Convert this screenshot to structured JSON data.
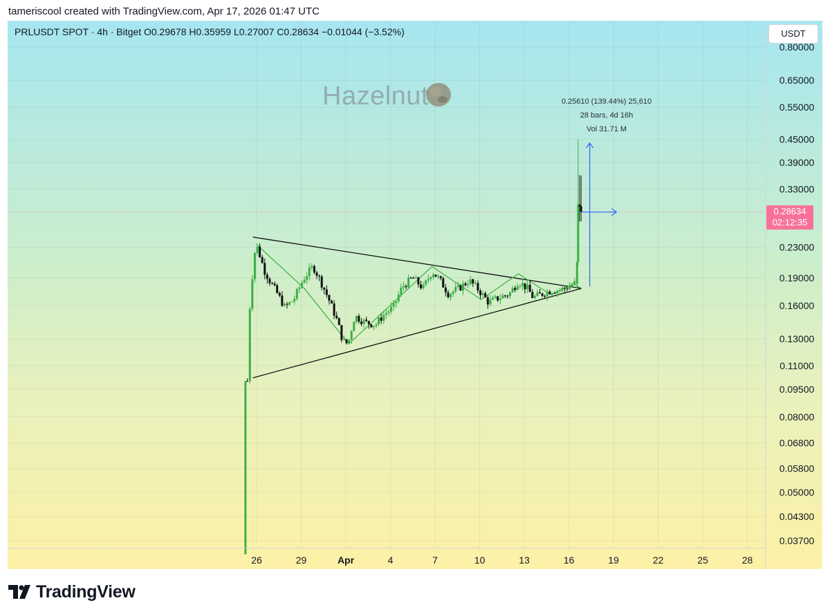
{
  "header": {
    "created_line": "tameriscool created with TradingView.com, Apr 17, 2026 01:47 UTC"
  },
  "legend": {
    "symbol_line": "PRLUSDT SPOT · 4h · Bitget  O0.29678  H0.35959  L0.27007  C0.28634  −0.01044 (−3.52%)"
  },
  "currency_button": "USDT",
  "watermark": "Hazelnut",
  "measure": {
    "line1": "0.25610 (139.44%) 25,610",
    "line2": "28 bars, 4d 16h",
    "line3": "Vol 31.71 M"
  },
  "last_price": {
    "price": "0.28634",
    "countdown": "02:12:35",
    "value": 0.28634
  },
  "footer": {
    "brand": "TradingView"
  },
  "colors": {
    "up": "#3cae45",
    "down": "#111111",
    "price_tag": "#f7729a",
    "measure": "#2962ff"
  },
  "chart_data": {
    "type": "candlestick",
    "symbol": "PRLUSDT",
    "exchange": "Bitget",
    "interval": "4h",
    "y_scale": "log",
    "ylim": [
      0.034,
      0.86
    ],
    "y_ticks": [
      "0.80000",
      "0.65000",
      "0.55000",
      "0.45000",
      "0.39000",
      "0.33000",
      "0.23000",
      "0.19000",
      "0.16000",
      "0.13000",
      "0.11000",
      "0.09500",
      "0.08000",
      "0.06800",
      "0.05800",
      "0.05000",
      "0.04300",
      "0.03700"
    ],
    "x_range_days": [
      -0.8,
      28.7
    ],
    "x_ticks": [
      {
        "label": "26",
        "day": 0
      },
      {
        "label": "29",
        "day": 3
      },
      {
        "label": "Apr",
        "day": 6
      },
      {
        "label": "4",
        "day": 9
      },
      {
        "label": "7",
        "day": 12
      },
      {
        "label": "10",
        "day": 15
      },
      {
        "label": "13",
        "day": 18
      },
      {
        "label": "16",
        "day": 21
      },
      {
        "label": "19",
        "day": 24
      },
      {
        "label": "22",
        "day": 27
      },
      {
        "label": "25",
        "day": 30
      },
      {
        "label": "28",
        "day": 33
      }
    ],
    "price_anchors": [
      [
        -0.62,
        0.1
      ],
      [
        -0.55,
        0.125
      ],
      [
        -0.45,
        0.16
      ],
      [
        -0.25,
        0.2
      ],
      [
        -0.05,
        0.235
      ],
      [
        0.2,
        0.22
      ],
      [
        0.5,
        0.2
      ],
      [
        0.9,
        0.186
      ],
      [
        1.4,
        0.172
      ],
      [
        1.9,
        0.158
      ],
      [
        2.5,
        0.166
      ],
      [
        3.2,
        0.19
      ],
      [
        3.8,
        0.204
      ],
      [
        4.2,
        0.19
      ],
      [
        4.8,
        0.168
      ],
      [
        5.4,
        0.146
      ],
      [
        5.8,
        0.128
      ],
      [
        6.15,
        0.126
      ],
      [
        6.6,
        0.15
      ],
      [
        7.3,
        0.144
      ],
      [
        8.0,
        0.142
      ],
      [
        8.6,
        0.152
      ],
      [
        9.2,
        0.158
      ],
      [
        9.8,
        0.18
      ],
      [
        10.5,
        0.19
      ],
      [
        11.2,
        0.178
      ],
      [
        11.8,
        0.198
      ],
      [
        12.3,
        0.188
      ],
      [
        12.9,
        0.172
      ],
      [
        13.6,
        0.178
      ],
      [
        14.3,
        0.187
      ],
      [
        15.0,
        0.175
      ],
      [
        15.6,
        0.163
      ],
      [
        16.3,
        0.168
      ],
      [
        17.0,
        0.172
      ],
      [
        17.6,
        0.186
      ],
      [
        18.2,
        0.178
      ],
      [
        18.6,
        0.168
      ],
      [
        19.2,
        0.172
      ],
      [
        19.8,
        0.176
      ],
      [
        20.4,
        0.176
      ],
      [
        21.0,
        0.18
      ],
      [
        21.3,
        0.184
      ],
      [
        21.48,
        0.183
      ],
      [
        21.55,
        0.21
      ],
      [
        21.62,
        0.29
      ],
      [
        21.72,
        0.33
      ],
      [
        21.82,
        0.2863
      ]
    ],
    "spike_first_bar": {
      "open": 0.034,
      "close": 0.1
    },
    "breakout_bars": [
      {
        "day": 21.55,
        "open": 0.183,
        "high": 0.21,
        "low": 0.18,
        "close": 0.21
      },
      {
        "day": 21.62,
        "open": 0.21,
        "high": 0.45,
        "low": 0.205,
        "close": 0.3
      },
      {
        "day": 21.72,
        "open": 0.3,
        "high": 0.36,
        "low": 0.27,
        "close": 0.2968
      },
      {
        "day": 21.82,
        "open": 0.2968,
        "high": 0.3596,
        "low": 0.2701,
        "close": 0.2863
      }
    ],
    "pattern_lines": [
      {
        "name": "upper-trendline",
        "from": [
          -0.25,
          0.245
        ],
        "to": [
          21.85,
          0.178
        ]
      },
      {
        "name": "lower-trendline",
        "from": [
          -0.25,
          0.102
        ],
        "to": [
          21.85,
          0.178
        ]
      }
    ],
    "wave_line": [
      [
        -0.05,
        0.235
      ],
      [
        3.2,
        0.178
      ],
      [
        6.2,
        0.126
      ],
      [
        11.8,
        0.204
      ],
      [
        15.1,
        0.166
      ],
      [
        17.6,
        0.195
      ],
      [
        19.8,
        0.171
      ],
      [
        21.3,
        0.183
      ],
      [
        21.85,
        0.178
      ]
    ],
    "measure": {
      "x_day": 22.4,
      "y_from": 0.18,
      "y_to": 0.44,
      "h_from_day": 21.8,
      "h_to_day": 24.2,
      "h_y": 0.2863
    }
  }
}
